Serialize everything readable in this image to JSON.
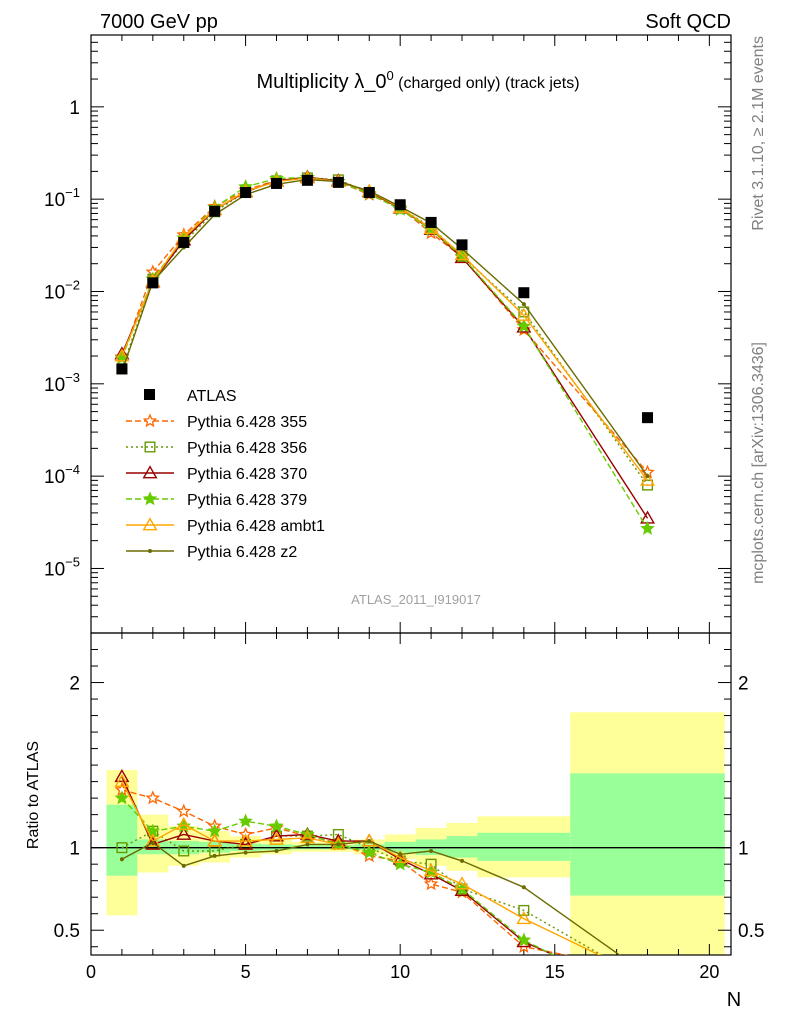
{
  "header": {
    "left": "7000 GeV pp",
    "right": "Soft QCD"
  },
  "side_labels": {
    "rivet": "Rivet 3.1.10, ≥ 2.1M events",
    "mcplots": "mcplots.cern.ch [arXiv:1306.3436]"
  },
  "chart_data": [
    {
      "type": "line",
      "title_main": "Multiplicity λ_0",
      "title_sup": "0",
      "title_rest": " (charged only) (track jets)",
      "watermark": "ATLAS_2011_I919017",
      "yscale": "log",
      "xlim": [
        0,
        20.7
      ],
      "ylim": [
        2e-06,
        6
      ],
      "ytick_labels": [
        {
          "v": 1,
          "label": "1"
        },
        {
          "v": 0.1,
          "base": "10",
          "exp": "−1"
        },
        {
          "v": 0.01,
          "base": "10",
          "exp": "−2"
        },
        {
          "v": 0.001,
          "base": "10",
          "exp": "−3"
        },
        {
          "v": 0.0001,
          "base": "10",
          "exp": "−4"
        },
        {
          "v": 1e-05,
          "base": "10",
          "exp": "−5"
        }
      ],
      "legend_position": "lower-left",
      "data": {
        "name": "ATLAS",
        "x": [
          1,
          2,
          3,
          4,
          5,
          6,
          7,
          8,
          9,
          10,
          11,
          12,
          14,
          18
        ],
        "y": [
          0.00145,
          0.0124,
          0.034,
          0.074,
          0.118,
          0.148,
          0.16,
          0.152,
          0.118,
          0.087,
          0.056,
          0.032,
          0.0097,
          0.00043
        ]
      },
      "series": [
        {
          "name": "Pythia 6.428 355",
          "color": "#ff6600",
          "dash": "6,3",
          "marker": "star-open",
          "y": [
            0.00195,
            0.0162,
            0.041,
            0.083,
            0.125,
            0.16,
            0.17,
            0.155,
            0.112,
            0.08,
            0.043,
            0.0236,
            0.00385,
            0.00011
          ]
        },
        {
          "name": "Pythia 6.428 356",
          "color": "#669900",
          "dash": "2,3",
          "marker": "square-open",
          "y": [
            0.00145,
            0.0136,
            0.034,
            0.073,
            0.12,
            0.158,
            0.17,
            0.162,
            0.118,
            0.08,
            0.05,
            0.024,
            0.006,
            8e-05
          ]
        },
        {
          "name": "Pythia 6.428 370",
          "color": "#990000",
          "dash": "",
          "marker": "triangle-open",
          "y": [
            0.0021,
            0.0127,
            0.036,
            0.077,
            0.12,
            0.158,
            0.173,
            0.158,
            0.12,
            0.08,
            0.047,
            0.0232,
            0.0041,
            3.5e-05
          ]
        },
        {
          "name": "Pythia 6.428 379",
          "color": "#66cc00",
          "dash": "6,3",
          "marker": "star-filled",
          "y": [
            0.0019,
            0.0136,
            0.038,
            0.081,
            0.136,
            0.167,
            0.172,
            0.155,
            0.115,
            0.077,
            0.047,
            0.024,
            0.0042,
            2.7e-05
          ]
        },
        {
          "name": "Pythia 6.428 ambt1",
          "color": "#ffa500",
          "dash": "",
          "marker": "triangle-up-open",
          "y": [
            0.002,
            0.0129,
            0.039,
            0.077,
            0.122,
            0.155,
            0.169,
            0.155,
            0.122,
            0.081,
            0.048,
            0.025,
            0.0055,
            9e-05
          ]
        },
        {
          "name": "Pythia 6.428 z2",
          "color": "#6b6b00",
          "dash": "",
          "marker": "dot",
          "y": [
            0.00135,
            0.0128,
            0.03,
            0.068,
            0.112,
            0.145,
            0.163,
            0.155,
            0.123,
            0.083,
            0.055,
            0.029,
            0.0073,
            0.0001
          ]
        }
      ]
    },
    {
      "type": "line",
      "ylabel": "Ratio to ATLAS",
      "xlabel": "N",
      "xlim": [
        0,
        20.7
      ],
      "ylim": [
        0.35,
        2.3
      ],
      "xticks": [
        0,
        5,
        10,
        15,
        20
      ],
      "yticks": [
        0.5,
        1,
        2
      ],
      "bands": {
        "x_edges": [
          0.5,
          1.5,
          2.5,
          3.5,
          4.5,
          5.5,
          6.5,
          7.5,
          8.5,
          9.5,
          10.5,
          11.5,
          12.5,
          15.5,
          20.5
        ],
        "inner_lo": [
          0.83,
          0.96,
          0.96,
          0.97,
          0.98,
          0.985,
          0.99,
          0.99,
          0.985,
          0.97,
          0.955,
          0.94,
          0.92,
          0.71
        ],
        "inner_hi": [
          1.26,
          1.05,
          1.04,
          1.035,
          1.025,
          1.02,
          1.015,
          1.015,
          1.02,
          1.035,
          1.05,
          1.07,
          1.09,
          1.45
        ],
        "outer_lo": [
          0.59,
          0.85,
          0.89,
          0.91,
          0.94,
          0.96,
          0.975,
          0.975,
          0.96,
          0.93,
          0.89,
          0.86,
          0.82,
          0.3
        ],
        "outer_hi": [
          1.47,
          1.2,
          1.13,
          1.1,
          1.07,
          1.05,
          1.035,
          1.035,
          1.05,
          1.08,
          1.12,
          1.15,
          1.19,
          1.82
        ]
      },
      "ratio_series": [
        {
          "name": "Pythia 6.428 355",
          "y": [
            1.35,
            1.3,
            1.22,
            1.13,
            1.08,
            1.12,
            1.07,
            1.03,
            0.95,
            0.92,
            0.78,
            0.73,
            0.4,
            0.25
          ]
        },
        {
          "name": "Pythia 6.428 356",
          "y": [
            1.0,
            1.1,
            0.98,
            0.98,
            1.02,
            1.07,
            1.07,
            1.08,
            1.0,
            0.92,
            0.9,
            0.75,
            0.62,
            0.19
          ]
        },
        {
          "name": "Pythia 6.428 370",
          "y": [
            1.43,
            1.02,
            1.08,
            1.04,
            1.02,
            1.07,
            1.08,
            1.04,
            1.04,
            0.93,
            0.84,
            0.74,
            0.43,
            0.1
          ]
        },
        {
          "name": "Pythia 6.428 379",
          "y": [
            1.3,
            1.1,
            1.13,
            1.1,
            1.16,
            1.13,
            1.08,
            1.02,
            0.97,
            0.9,
            0.85,
            0.75,
            0.44,
            0.06
          ]
        },
        {
          "name": "Pythia 6.428 ambt1",
          "y": [
            1.4,
            1.04,
            1.14,
            1.04,
            1.04,
            1.05,
            1.06,
            1.02,
            1.04,
            0.94,
            0.86,
            0.78,
            0.57,
            0.21
          ]
        },
        {
          "name": "Pythia 6.428 z2",
          "y": [
            0.93,
            1.03,
            0.89,
            0.95,
            0.97,
            0.98,
            1.02,
            1.02,
            1.04,
            0.96,
            0.98,
            0.92,
            0.76,
            0.23
          ]
        }
      ]
    }
  ]
}
